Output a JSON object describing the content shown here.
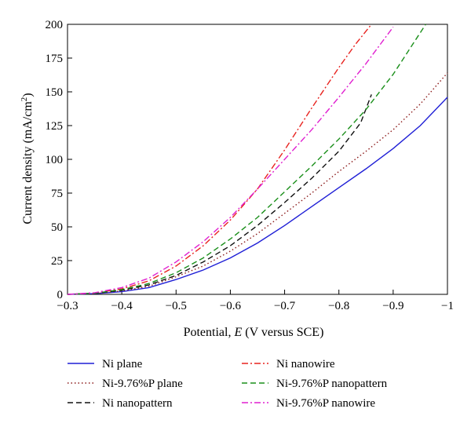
{
  "chart_data": {
    "type": "line",
    "xlabel_prefix": "Potential, ",
    "xlabel_var": "E",
    "xlabel_suffix": " (V versus SCE)",
    "ylabel_main": "Current density (mA/cm",
    "ylabel_sup": "2",
    "ylabel_close": ")",
    "xlim": [
      -0.3,
      -1.0
    ],
    "ylim": [
      0,
      200
    ],
    "x_ticks": [
      -0.3,
      -0.4,
      -0.5,
      -0.6,
      -0.7,
      -0.8,
      -0.9,
      -1.0
    ],
    "x_tick_labels": [
      "−0.3",
      "−0.4",
      "−0.5",
      "−0.6",
      "−0.7",
      "−0.8",
      "−0.9",
      "−1"
    ],
    "y_ticks": [
      0,
      25,
      50,
      75,
      100,
      125,
      150,
      175,
      200
    ],
    "y_tick_labels": [
      "0",
      "25",
      "50",
      "75",
      "100",
      "125",
      "150",
      "175",
      "200"
    ],
    "legend_position": "bottom",
    "series": [
      {
        "name": "Ni plane",
        "color": "#1f1fd6",
        "dash": "solid",
        "x": [
          -0.3,
          -0.35,
          -0.4,
          -0.45,
          -0.5,
          -0.55,
          -0.6,
          -0.65,
          -0.7,
          -0.75,
          -0.8,
          -0.85,
          -0.9,
          -0.95,
          -1.0
        ],
        "y": [
          0,
          0.5,
          2,
          5,
          11,
          18,
          27,
          38,
          51,
          65,
          79,
          93,
          108,
          125,
          146
        ]
      },
      {
        "name": "Ni-9.76%P plane",
        "color": "#8b1a1a",
        "dash": "dot",
        "x": [
          -0.3,
          -0.35,
          -0.4,
          -0.45,
          -0.5,
          -0.55,
          -0.6,
          -0.65,
          -0.7,
          -0.75,
          -0.8,
          -0.85,
          -0.9,
          -0.95,
          -1.0
        ],
        "y": [
          0,
          0.6,
          2.5,
          6,
          13,
          21,
          32,
          45,
          60,
          75,
          91,
          106,
          122,
          141,
          164
        ]
      },
      {
        "name": "Ni nanopattern",
        "color": "#111111",
        "dash": "dash",
        "x": [
          -0.3,
          -0.35,
          -0.4,
          -0.45,
          -0.5,
          -0.55,
          -0.6,
          -0.65,
          -0.7,
          -0.75,
          -0.8,
          -0.84,
          -0.86
        ],
        "y": [
          0,
          0.8,
          3,
          7,
          14,
          24,
          36,
          51,
          68,
          86,
          106,
          127,
          148
        ]
      },
      {
        "name": "Ni nanowire",
        "color": "#e8231f",
        "dash": "dashdot",
        "x": [
          -0.3,
          -0.35,
          -0.4,
          -0.45,
          -0.5,
          -0.55,
          -0.6,
          -0.65,
          -0.7,
          -0.75,
          -0.8,
          -0.83,
          -0.86
        ],
        "y": [
          0,
          1,
          4,
          10,
          21,
          36,
          55,
          78,
          107,
          138,
          168,
          185,
          200
        ]
      },
      {
        "name": "Ni-9.76%P nanopattern",
        "color": "#1a8f1a",
        "dash": "dash",
        "x": [
          -0.3,
          -0.35,
          -0.4,
          -0.45,
          -0.5,
          -0.55,
          -0.6,
          -0.65,
          -0.7,
          -0.75,
          -0.8,
          -0.85,
          -0.9,
          -0.96
        ],
        "y": [
          0,
          0.9,
          3.5,
          8,
          16,
          27,
          41,
          57,
          76,
          95,
          115,
          137,
          163,
          200
        ]
      },
      {
        "name": "Ni-9.76%P nanowire",
        "color": "#e020d0",
        "dash": "dashdot",
        "x": [
          -0.3,
          -0.35,
          -0.4,
          -0.45,
          -0.5,
          -0.55,
          -0.6,
          -0.65,
          -0.7,
          -0.75,
          -0.8,
          -0.85,
          -0.9
        ],
        "y": [
          0,
          1.2,
          5,
          12,
          24,
          39,
          57,
          78,
          100,
          122,
          146,
          171,
          198
        ]
      }
    ]
  }
}
